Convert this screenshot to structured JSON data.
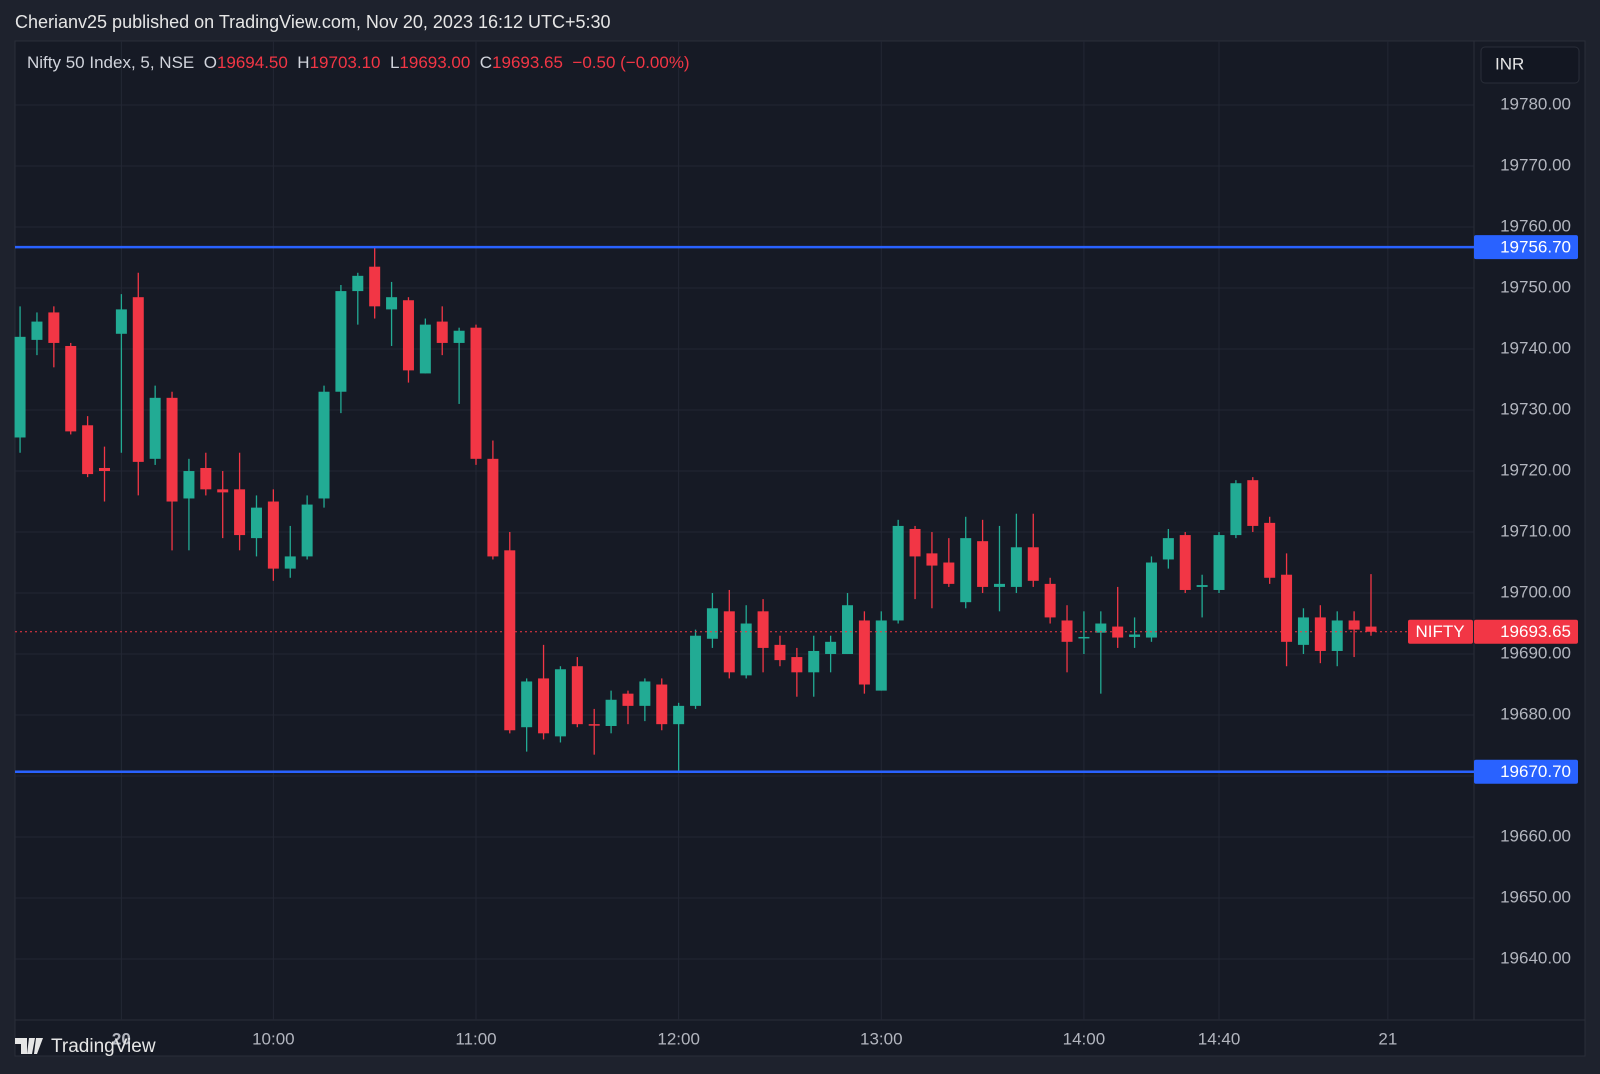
{
  "header": {
    "text": "Cherianv25 published on TradingView.com, Nov 20, 2023 16:12 UTC+5:30"
  },
  "footer": {
    "brand": "TradingView"
  },
  "chart_data": {
    "type": "candlestick",
    "title": "Nifty 50 Index, 5, NSE",
    "ohlc_legend": [
      {
        "key": "O",
        "value": "19694.50"
      },
      {
        "key": "H",
        "value": "19703.10"
      },
      {
        "key": "L",
        "value": "19693.00"
      },
      {
        "key": "C",
        "value": "19693.65"
      }
    ],
    "change": "−0.50 (−0.00%)",
    "currency": "INR",
    "up_color": "#22ab94",
    "down_color": "#f23645",
    "open": [
      19725.5,
      19741.5,
      19746,
      19740.5,
      19727.5,
      19720.5,
      19742.5,
      19748.5,
      19722,
      19732,
      19715.5,
      19720.5,
      19717,
      19717,
      19709,
      19715,
      19704,
      19706,
      19715.5,
      19733,
      19749.5,
      19753.5,
      19746.5,
      19748,
      19736,
      19744.5,
      19741,
      19743.5,
      19722,
      19707,
      19678,
      19686,
      19676.5,
      19688,
      19678.5,
      19678.2,
      19683.5,
      19681.5,
      19685,
      19678.5,
      19681.5,
      19692.5,
      19697,
      19686.5,
      19697,
      19691.5,
      19689.5,
      19687,
      19690,
      19690,
      19695.5,
      19684,
      19695.5,
      19710.5,
      19706.5,
      19705,
      19698.5,
      19708.5,
      19701,
      19701,
      19707.5,
      19701.5,
      19695.5,
      19692.7,
      19693.5,
      19694.5,
      19692.8,
      19692.7,
      19705.5,
      19709.5,
      19701,
      19700.5,
      19709.5,
      19718.5,
      19711.5,
      19703,
      19691.5,
      19696,
      19690.5,
      19695.5,
      19694.5
    ],
    "high": [
      19747,
      19746,
      19747,
      19741,
      19729,
      19724,
      19749,
      19752.5,
      19734,
      19733,
      19722,
      19723,
      19720,
      19723,
      19716,
      19717,
      19711,
      19716,
      19734,
      19750.5,
      19752.5,
      19756.7,
      19751,
      19748.5,
      19745,
      19747,
      19743.5,
      19744,
      19725,
      19710,
      19686,
      19691.5,
      19688,
      19689.5,
      19681,
      19684,
      19684,
      19686,
      19686,
      19682,
      19694,
      19700,
      19700.5,
      19698,
      19699,
      19693,
      19691,
      19693,
      19693,
      19700,
      19697,
      19697,
      19712,
      19711,
      19710,
      19709,
      19712.5,
      19712,
      19711,
      19713,
      19713,
      19702.5,
      19698,
      19697,
      19697,
      19701,
      19696,
      19706,
      19710.5,
      19710,
      19703,
      19710,
      19718.5,
      19719,
      19712.5,
      19706.5,
      19697.5,
      19698,
      19697,
      19697,
      19703.1
    ],
    "low": [
      19723,
      19739,
      19737,
      19726,
      19719,
      19715,
      19723,
      19716,
      19721,
      19707,
      19707,
      19716,
      19709,
      19707,
      19706,
      19702,
      19702.5,
      19705.5,
      19714,
      19729.5,
      19744,
      19745,
      19740.5,
      19734.5,
      19736,
      19739,
      19731,
      19721,
      19705.5,
      19677,
      19674,
      19676,
      19675.5,
      19678,
      19673.5,
      19677,
      19678.5,
      19679,
      19677.5,
      19670.7,
      19681,
      19691,
      19686,
      19686,
      19687,
      19688,
      19683,
      19683,
      19687,
      19690,
      19683.5,
      19684,
      19695,
      19699,
      19697.5,
      19701,
      19697.5,
      19700,
      19697,
      19700,
      19701,
      19695,
      19687,
      19690,
      19683.5,
      19691,
      19691,
      19692,
      19704,
      19700,
      19696,
      19700,
      19709,
      19710,
      19701.5,
      19688,
      19690,
      19688.5,
      19688,
      19689.5,
      19693
    ],
    "close": [
      19742,
      19744.5,
      19741,
      19726.5,
      19719.5,
      19720,
      19746.5,
      19721.5,
      19732,
      19715,
      19720,
      19717,
      19716.5,
      19709.5,
      19714,
      19704,
      19706,
      19714.5,
      19733,
      19749.5,
      19752,
      19747,
      19748.5,
      19736.5,
      19744,
      19741,
      19743,
      19722,
      19706,
      19677.5,
      19685.5,
      19677,
      19687.5,
      19678.5,
      19678.3,
      19682.5,
      19681.5,
      19685.5,
      19678.5,
      19681.5,
      19693,
      19697.5,
      19687,
      19695,
      19691,
      19689,
      19687,
      19690.5,
      19692,
      19698,
      19685,
      19695.5,
      19711,
      19706,
      19704.5,
      19701.5,
      19709,
      19701,
      19701.5,
      19707.5,
      19702,
      19696,
      19692,
      19692.8,
      19695,
      19692.7,
      19693.2,
      19705,
      19709,
      19700.5,
      19701.3,
      19709.5,
      19718,
      19711,
      19702.5,
      19692,
      19696,
      19690.5,
      19695.5,
      19694,
      19693.65
    ],
    "xlim": [
      -0.3,
      86.1
    ],
    "xticks": [
      {
        "value": 6,
        "label": "20"
      },
      {
        "value": 15,
        "label": "10:00"
      },
      {
        "value": 27,
        "label": "11:00"
      },
      {
        "value": 39,
        "label": "12:00"
      },
      {
        "value": 51,
        "label": "13:00"
      },
      {
        "value": 63,
        "label": "14:00"
      },
      {
        "value": 71,
        "label": "14:40"
      },
      {
        "value": 81,
        "label": "21"
      }
    ],
    "ylim": [
      19630,
      19790.5
    ],
    "yticks": [
      {
        "value": 19640,
        "label": "19640.00"
      },
      {
        "value": 19650,
        "label": "19650.00"
      },
      {
        "value": 19660,
        "label": "19660.00"
      },
      {
        "value": 19670,
        "label": "19670.00"
      },
      {
        "value": 19680,
        "label": "19680.00"
      },
      {
        "value": 19690,
        "label": "19690.00"
      },
      {
        "value": 19700,
        "label": "19700.00"
      },
      {
        "value": 19710,
        "label": "19710.00"
      },
      {
        "value": 19720,
        "label": "19720.00"
      },
      {
        "value": 19730,
        "label": "19730.00"
      },
      {
        "value": 19740,
        "label": "19740.00"
      },
      {
        "value": 19750,
        "label": "19750.00"
      },
      {
        "value": 19760,
        "label": "19760.00"
      },
      {
        "value": 19770,
        "label": "19770.00"
      },
      {
        "value": 19780,
        "label": "19780.00"
      }
    ],
    "grid": true,
    "lines": [
      {
        "value": 19756.7,
        "label": "19756.70",
        "color": "#2962ff"
      },
      {
        "value": 19670.7,
        "label": "19670.70",
        "color": "#2962ff"
      }
    ],
    "last_price": {
      "name": "NIFTY",
      "value": 19693.65,
      "label": "19693.65",
      "color": "#f23645"
    }
  }
}
